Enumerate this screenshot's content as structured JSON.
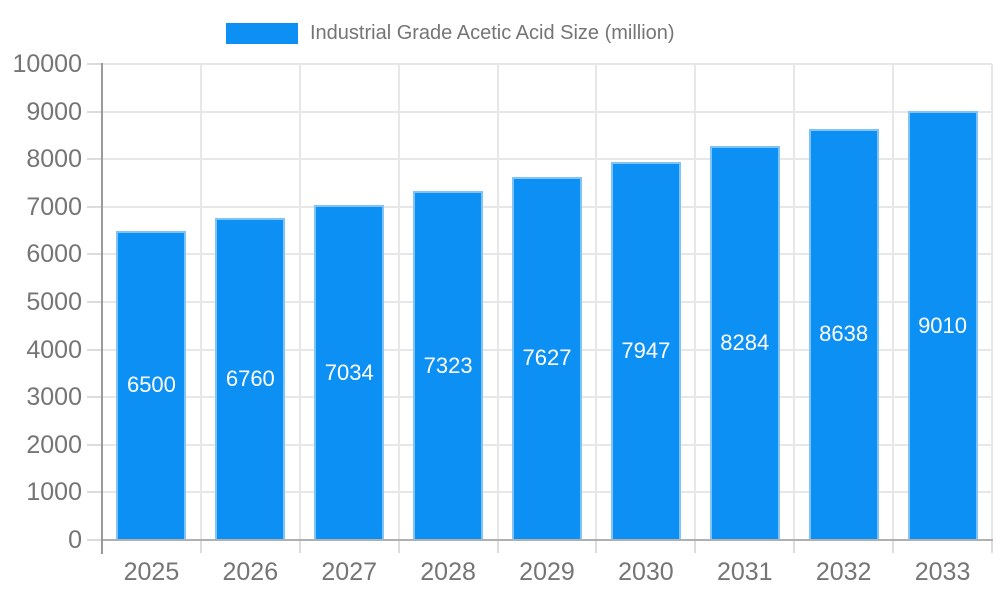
{
  "legend": {
    "label": "Industrial Grade Acetic Acid Size (million)"
  },
  "chart_data": {
    "type": "bar",
    "title": "Industrial Grade Acetic Acid Size (million)",
    "categories": [
      "2025",
      "2026",
      "2027",
      "2028",
      "2029",
      "2030",
      "2031",
      "2032",
      "2033"
    ],
    "series": [
      {
        "name": "Industrial Grade Acetic Acid Size (million)",
        "values": [
          6500,
          6760,
          7034,
          7323,
          7627,
          7947,
          8284,
          8638,
          9010
        ]
      }
    ],
    "value_labels": [
      "6500",
      "6760",
      "7034",
      "7323",
      "7627",
      "7947",
      "8284",
      "8638",
      "9010"
    ],
    "xlabel": "",
    "ylabel": "",
    "ylim": [
      0,
      10000
    ],
    "ytick_step": 1000,
    "yticks": [
      "0",
      "1000",
      "2000",
      "3000",
      "4000",
      "5000",
      "6000",
      "7000",
      "8000",
      "9000",
      "10000"
    ],
    "grid": true,
    "legend_position": "top",
    "value_labels_position": "inside-center"
  },
  "colors": {
    "background": "#ffffff",
    "bar_fill": "#0d90f3",
    "bar_border": "#7fc3f8",
    "gridline": "#e7e7e7",
    "tick": "#dcdcdc",
    "y_axis_line": "#9a9a9a",
    "x_axis_line": "#b0b0b0",
    "axis_label_text": "#757575",
    "legend_text": "#757575",
    "bar_value_text": "#ffffff"
  }
}
